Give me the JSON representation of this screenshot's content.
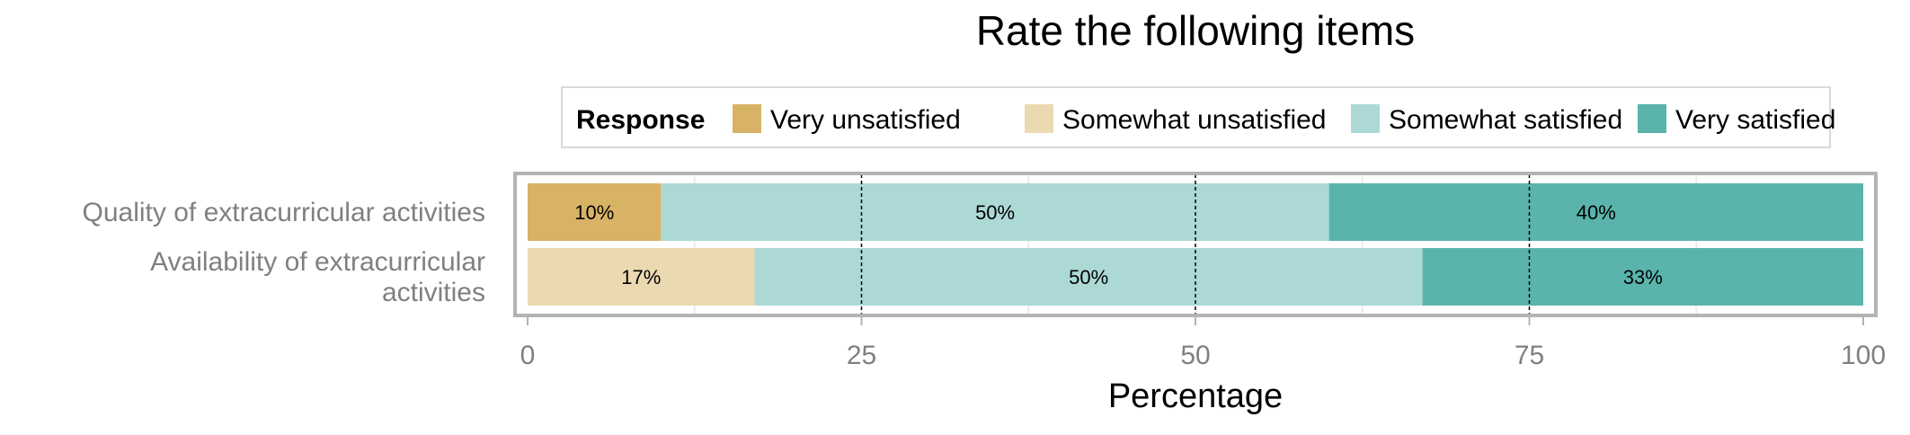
{
  "chart_data": {
    "type": "bar",
    "orientation": "horizontal",
    "stacked": true,
    "title": "Rate the following items",
    "xlabel": "Percentage",
    "ylabel": "",
    "xlim": [
      0,
      100
    ],
    "x_ticks": [
      0,
      25,
      50,
      75,
      100
    ],
    "grid": true,
    "legend": {
      "title": "Response",
      "position": "top",
      "entries": [
        "Very unsatisfied",
        "Somewhat unsatisfied",
        "Somewhat satisfied",
        "Very satisfied"
      ]
    },
    "categories": [
      [
        "Quality of extracurricular activities"
      ],
      [
        "Availability of extracurricular",
        "activities"
      ]
    ],
    "series": [
      {
        "name": "Very unsatisfied",
        "color": "#D8B365",
        "values": [
          10,
          0
        ]
      },
      {
        "name": "Somewhat unsatisfied",
        "color": "#EBD9B2",
        "values": [
          0,
          17
        ]
      },
      {
        "name": "Somewhat satisfied",
        "color": "#ACD9D6",
        "values": [
          50,
          50
        ]
      },
      {
        "name": "Very satisfied",
        "color": "#5AB4AC",
        "values": [
          40,
          33
        ]
      }
    ],
    "data_labels": [
      [
        "10%",
        "",
        "50%",
        "40%"
      ],
      [
        "",
        "17%",
        "50%",
        "33%"
      ]
    ]
  }
}
